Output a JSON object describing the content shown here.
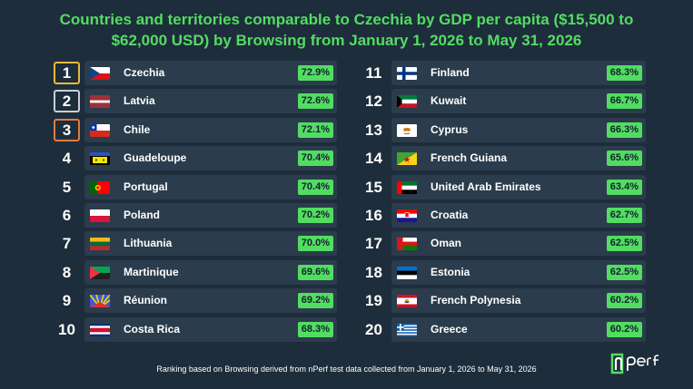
{
  "title_line1": "Countries and territories comparable to Czechia by GDP per capita ($15,500 to",
  "title_line2": "$62,000 USD) by Browsing from January 1, 2026 to May 31, 2026",
  "left": [
    {
      "rank": "1",
      "name": "Czechia",
      "pct": "72.9%",
      "flag": "czechia-flag"
    },
    {
      "rank": "2",
      "name": "Latvia",
      "pct": "72.6%",
      "flag": "latvia-flag"
    },
    {
      "rank": "3",
      "name": "Chile",
      "pct": "72.1%",
      "flag": "chile-flag"
    },
    {
      "rank": "4",
      "name": "Guadeloupe",
      "pct": "70.4%",
      "flag": "guadeloupe-flag"
    },
    {
      "rank": "5",
      "name": "Portugal",
      "pct": "70.4%",
      "flag": "portugal-flag"
    },
    {
      "rank": "6",
      "name": "Poland",
      "pct": "70.2%",
      "flag": "poland-flag"
    },
    {
      "rank": "7",
      "name": "Lithuania",
      "pct": "70.0%",
      "flag": "lithuania-flag"
    },
    {
      "rank": "8",
      "name": "Martinique",
      "pct": "69.6%",
      "flag": "martinique-flag"
    },
    {
      "rank": "9",
      "name": "Réunion",
      "pct": "69.2%",
      "flag": "reunion-flag"
    },
    {
      "rank": "10",
      "name": "Costa Rica",
      "pct": "68.3%",
      "flag": "costa-rica-flag"
    }
  ],
  "right": [
    {
      "rank": "11",
      "name": "Finland",
      "pct": "68.3%",
      "flag": "finland-flag"
    },
    {
      "rank": "12",
      "name": "Kuwait",
      "pct": "66.7%",
      "flag": "kuwait-flag"
    },
    {
      "rank": "13",
      "name": "Cyprus",
      "pct": "66.3%",
      "flag": "cyprus-flag"
    },
    {
      "rank": "14",
      "name": "French Guiana",
      "pct": "65.6%",
      "flag": "french-guiana-flag"
    },
    {
      "rank": "15",
      "name": "United Arab Emirates",
      "pct": "63.4%",
      "flag": "uae-flag"
    },
    {
      "rank": "16",
      "name": "Croatia",
      "pct": "62.7%",
      "flag": "croatia-flag"
    },
    {
      "rank": "17",
      "name": "Oman",
      "pct": "62.5%",
      "flag": "oman-flag"
    },
    {
      "rank": "18",
      "name": "Estonia",
      "pct": "62.5%",
      "flag": "estonia-flag"
    },
    {
      "rank": "19",
      "name": "French Polynesia",
      "pct": "60.2%",
      "flag": "french-polynesia-flag"
    },
    {
      "rank": "20",
      "name": "Greece",
      "pct": "60.2%",
      "flag": "greece-flag"
    }
  ],
  "footer": "Ranking based on Browsing derived from nPerf test data collected from January 1, 2026 to May 31, 2026",
  "logo_text": "nperf",
  "colors": {
    "background": "#1e2d3b",
    "accent": "#52dd62",
    "row": "#2b3c4c",
    "gold": "#e6b93a",
    "silver": "#c9ced6",
    "bronze": "#e07b3e"
  }
}
